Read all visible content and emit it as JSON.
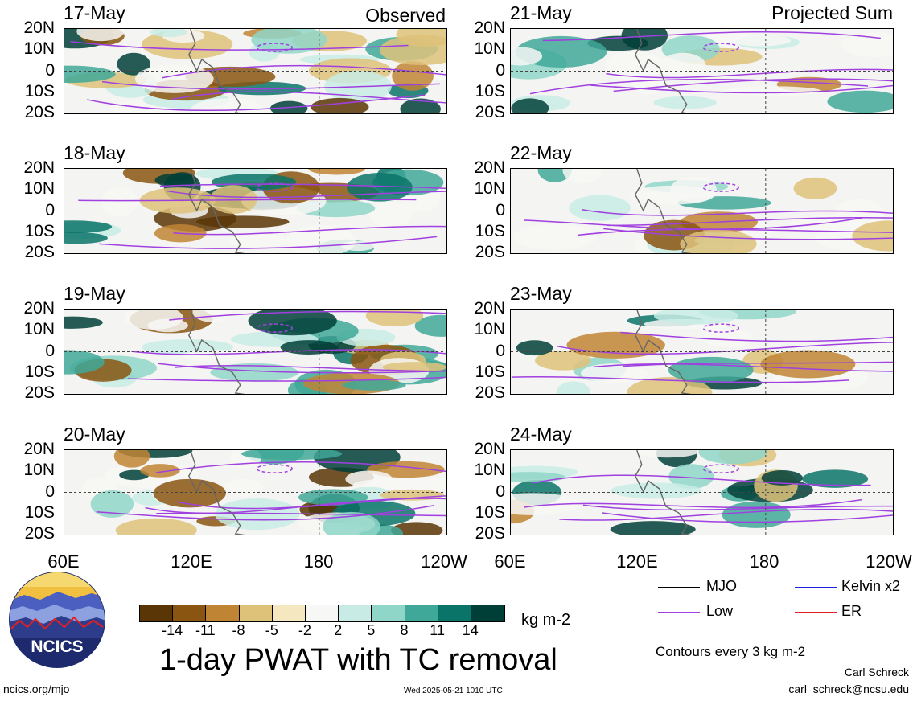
{
  "labels": {
    "observed": "Observed",
    "projected": "Projected Sum",
    "title": "1-day PWAT with TC removal",
    "units": "kg m-2",
    "contours_note": "Contours every 3 kg m-2",
    "author": "Carl Schreck",
    "email": "carl_schreck@ncsu.edu",
    "url": "ncics.org/mjo",
    "timestamp": "Wed 2025-05-21 1010 UTC",
    "logo_text": "NCICS"
  },
  "legend": [
    {
      "label": "MJO",
      "color": "#000000"
    },
    {
      "label": "Kelvin x2",
      "color": "#1f1fe0"
    },
    {
      "label": "Low",
      "color": "#a040e0"
    },
    {
      "label": "ER",
      "color": "#e02020"
    }
  ],
  "colorbar": {
    "colors": [
      "#5a3506",
      "#8a5510",
      "#bf8535",
      "#dec27a",
      "#f5e8c0",
      "#f7f7f5",
      "#c8ece5",
      "#8fd6c8",
      "#3fa898",
      "#0a7468",
      "#003f38"
    ],
    "ticks": [
      "-14",
      "-11",
      "-8",
      "-5",
      "-2",
      "2",
      "5",
      "8",
      "11",
      "14"
    ]
  },
  "chart_data": [
    {
      "type": "heatmap",
      "title": "17-May",
      "group": "Observed",
      "xticks": [
        "60E",
        "120E",
        "180",
        "120W"
      ],
      "yticks": [
        "20N",
        "10N",
        "0",
        "10S",
        "20S"
      ]
    },
    {
      "type": "heatmap",
      "title": "18-May",
      "group": "Observed",
      "xticks": [
        "60E",
        "120E",
        "180",
        "120W"
      ],
      "yticks": [
        "20N",
        "10N",
        "0",
        "10S",
        "20S"
      ]
    },
    {
      "type": "heatmap",
      "title": "19-May",
      "group": "Observed",
      "xticks": [
        "60E",
        "120E",
        "180",
        "120W"
      ],
      "yticks": [
        "20N",
        "10N",
        "0",
        "10S",
        "20S"
      ]
    },
    {
      "type": "heatmap",
      "title": "20-May",
      "group": "Observed",
      "xticks": [
        "60E",
        "120E",
        "180",
        "120W"
      ],
      "yticks": [
        "20N",
        "10N",
        "0",
        "10S",
        "20S"
      ]
    },
    {
      "type": "heatmap",
      "title": "21-May",
      "group": "Projected Sum",
      "xticks": [
        "60E",
        "120E",
        "180",
        "120W"
      ],
      "yticks": [
        "20N",
        "10N",
        "0",
        "10S",
        "20S"
      ]
    },
    {
      "type": "heatmap",
      "title": "22-May",
      "group": "Projected Sum",
      "xticks": [
        "60E",
        "120E",
        "180",
        "120W"
      ],
      "yticks": [
        "20N",
        "10N",
        "0",
        "10S",
        "20S"
      ]
    },
    {
      "type": "heatmap",
      "title": "23-May",
      "group": "Projected Sum",
      "xticks": [
        "60E",
        "120E",
        "180",
        "120W"
      ],
      "yticks": [
        "20N",
        "10N",
        "0",
        "10S",
        "20S"
      ]
    },
    {
      "type": "heatmap",
      "title": "24-May",
      "group": "Projected Sum",
      "xticks": [
        "60E",
        "120E",
        "180",
        "120W"
      ],
      "yticks": [
        "20N",
        "10N",
        "0",
        "10S",
        "20S"
      ]
    }
  ]
}
